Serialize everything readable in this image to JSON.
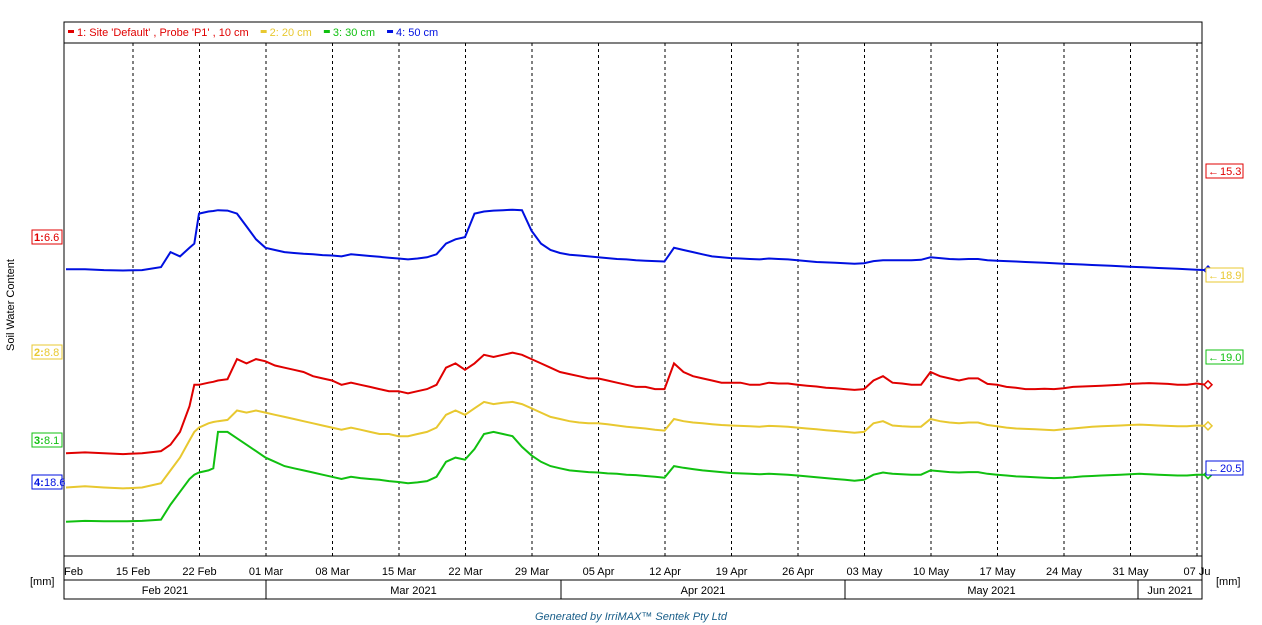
{
  "chart_data": {
    "type": "line",
    "ylabel": "Soil Water Content",
    "y_unit_left": "[mm]",
    "y_unit_right": "[mm]",
    "footer": "Generated by IrriMAX™ Sentek Pty Ltd",
    "x_ticks": [
      "Feb",
      "15 Feb",
      "22 Feb",
      "01 Mar",
      "08 Mar",
      "15 Mar",
      "22 Mar",
      "29 Mar",
      "05 Apr",
      "12 Apr",
      "19 Apr",
      "26 Apr",
      "03 May",
      "10 May",
      "17 May",
      "24 May",
      "31 May",
      "07 Ju"
    ],
    "months": [
      "Feb 2021",
      "Mar 2021",
      "Apr 2021",
      "May 2021",
      "Jun 2021"
    ],
    "series": [
      {
        "name": "1: Site 'Default' , Probe 'P1' , 10 cm",
        "color": "#e00000",
        "left_label_num": "1:",
        "left_label_val": "6.6",
        "right_label": "15.3",
        "x": [
          0,
          2,
          4,
          6,
          8,
          10,
          11,
          12,
          13,
          13.5,
          14,
          15,
          15.5,
          16,
          17,
          18,
          19,
          20,
          21,
          22,
          23,
          24,
          25,
          26,
          27,
          28,
          29,
          30,
          31,
          32,
          33,
          34,
          35,
          36,
          37,
          38,
          39,
          40,
          41,
          42,
          43,
          44,
          45,
          46,
          47,
          48,
          49,
          50,
          51,
          52,
          53,
          54,
          55,
          56,
          57,
          58,
          59,
          60,
          61,
          62,
          63,
          64,
          65,
          66,
          67,
          68,
          69,
          70,
          71,
          72,
          73,
          74,
          75,
          76,
          77,
          78,
          79,
          80,
          81,
          82,
          83,
          84,
          85,
          86,
          87,
          88,
          89,
          90,
          91,
          92,
          93,
          94,
          95,
          96,
          97,
          98,
          99,
          100,
          101,
          102,
          103,
          104,
          105,
          106,
          107,
          108,
          109,
          110,
          111,
          112,
          113,
          114,
          115,
          116,
          117,
          118,
          119,
          120
        ],
        "y": [
          112,
          112.2,
          112,
          111.8,
          112,
          112.5,
          114,
          117,
          123,
          128,
          128,
          128.5,
          128.7,
          129,
          129.3,
          134,
          133,
          134,
          133.5,
          132.5,
          132,
          131.5,
          131,
          130,
          129.5,
          129,
          128,
          128.5,
          128,
          127.5,
          127,
          126.5,
          126.5,
          126,
          126.5,
          127,
          128,
          132,
          133,
          131.5,
          133,
          135,
          134.5,
          135,
          135.5,
          135,
          134,
          133,
          132,
          131,
          130.5,
          130,
          129.5,
          129.5,
          129,
          128.5,
          128,
          127.5,
          127.5,
          127,
          127,
          133,
          131,
          130,
          129.5,
          129,
          128.5,
          128.5,
          128.5,
          128,
          128,
          128.5,
          128.3,
          128.3,
          128,
          127.8,
          127.6,
          127.3,
          127.2,
          127,
          126.8,
          127,
          129,
          130,
          128.5,
          128.3,
          128,
          128,
          131,
          130,
          129.5,
          129,
          129.5,
          129.5,
          128.2,
          128,
          127.5,
          127.3,
          127,
          127,
          127.1,
          127,
          127.2,
          127.5,
          127.6,
          127.7,
          127.8,
          127.9,
          128,
          128.2,
          128.3,
          128.4,
          128.3,
          128.2,
          128,
          128,
          128.3,
          128
        ]
      },
      {
        "name": "2: 20 cm",
        "color": "#e8c830",
        "left_label_num": "2:",
        "left_label_val": "8.8",
        "right_label": "18.9",
        "x": [
          0,
          2,
          4,
          6,
          8,
          10,
          11,
          12,
          13,
          13.5,
          14,
          15,
          15.5,
          16,
          17,
          18,
          19,
          20,
          21,
          22,
          23,
          24,
          25,
          26,
          27,
          28,
          29,
          30,
          31,
          32,
          33,
          34,
          35,
          36,
          37,
          38,
          39,
          40,
          41,
          42,
          43,
          44,
          45,
          46,
          47,
          48,
          49,
          50,
          51,
          52,
          53,
          54,
          55,
          56,
          57,
          58,
          59,
          60,
          61,
          62,
          63,
          64,
          65,
          66,
          67,
          68,
          69,
          70,
          71,
          72,
          73,
          74,
          75,
          76,
          77,
          78,
          79,
          80,
          81,
          82,
          83,
          84,
          85,
          86,
          87,
          88,
          89,
          90,
          91,
          92,
          93,
          94,
          95,
          96,
          97,
          98,
          99,
          100,
          101,
          102,
          103,
          104,
          105,
          106,
          107,
          108,
          109,
          110,
          111,
          112,
          113,
          114,
          115,
          116,
          117,
          118,
          119,
          120
        ],
        "y": [
          104,
          104.3,
          104,
          103.8,
          104,
          105,
          108,
          111,
          115,
          117,
          118,
          119,
          119.3,
          119.5,
          119.8,
          122,
          121.5,
          122,
          121.5,
          121,
          120.5,
          120,
          119.5,
          119,
          118.5,
          118,
          117.5,
          118,
          117.5,
          117,
          116.5,
          116.5,
          116,
          116,
          116.5,
          117,
          118,
          121,
          122,
          121,
          122.5,
          124,
          123.5,
          123.8,
          124,
          123.5,
          122.5,
          121.5,
          120.5,
          120,
          119.5,
          119.2,
          119,
          119,
          118.8,
          118.5,
          118.2,
          118,
          117.8,
          117.5,
          117.3,
          120,
          119.5,
          119.2,
          119,
          118.8,
          118.6,
          118.5,
          118.4,
          118.3,
          118.2,
          118.4,
          118.3,
          118.2,
          118,
          117.8,
          117.6,
          117.4,
          117.2,
          117,
          116.8,
          117,
          119,
          119.5,
          118.5,
          118.3,
          118.2,
          118.2,
          120,
          119.5,
          119.2,
          119,
          119.2,
          119.2,
          118.6,
          118.3,
          118,
          117.8,
          117.7,
          117.6,
          117.5,
          117.4,
          117.6,
          117.8,
          118,
          118.2,
          118.3,
          118.4,
          118.5,
          118.6,
          118.7,
          118.6,
          118.5,
          118.4,
          118.3,
          118.3,
          118.5,
          118.4
        ]
      },
      {
        "name": "3: 30 cm",
        "color": "#10c010",
        "left_label_num": "3:",
        "left_label_val": "8.1",
        "right_label": "19.0",
        "x": [
          0,
          2,
          4,
          6,
          8,
          10,
          11,
          12,
          13,
          13.5,
          14,
          15,
          15.5,
          16,
          17,
          18,
          19,
          20,
          21,
          22,
          23,
          24,
          25,
          26,
          27,
          28,
          29,
          30,
          31,
          32,
          33,
          34,
          35,
          36,
          37,
          38,
          39,
          40,
          41,
          42,
          43,
          44,
          45,
          46,
          47,
          48,
          49,
          50,
          51,
          52,
          53,
          54,
          55,
          56,
          57,
          58,
          59,
          60,
          61,
          62,
          63,
          64,
          65,
          66,
          67,
          68,
          69,
          70,
          71,
          72,
          73,
          74,
          75,
          76,
          77,
          78,
          79,
          80,
          81,
          82,
          83,
          84,
          85,
          86,
          87,
          88,
          89,
          90,
          91,
          92,
          93,
          94,
          95,
          96,
          97,
          98,
          99,
          100,
          101,
          102,
          103,
          104,
          105,
          106,
          107,
          108,
          109,
          110,
          111,
          112,
          113,
          114,
          115,
          116,
          117,
          118,
          119,
          120
        ],
        "y": [
          96,
          96.2,
          96.1,
          96.1,
          96.2,
          96.5,
          100,
          103,
          106,
          107,
          107.5,
          108,
          108.5,
          117,
          117,
          115.5,
          114,
          112.5,
          111,
          110,
          109,
          108.5,
          108,
          107.5,
          107,
          106.5,
          106,
          106.5,
          106.2,
          106,
          105.8,
          105.5,
          105.3,
          105,
          105.2,
          105.5,
          106.5,
          110,
          111,
          110.5,
          113,
          116.5,
          117,
          116.5,
          116,
          113.5,
          111.5,
          110,
          109,
          108.5,
          108,
          107.8,
          107.6,
          107.5,
          107.3,
          107.2,
          107,
          106.9,
          106.7,
          106.5,
          106.3,
          109,
          108.6,
          108.3,
          108,
          107.8,
          107.6,
          107.4,
          107.3,
          107.2,
          107.1,
          107.2,
          107.1,
          107,
          106.8,
          106.6,
          106.4,
          106.2,
          106,
          105.8,
          105.6,
          105.8,
          107,
          107.5,
          107.2,
          107.1,
          107,
          107,
          108,
          107.8,
          107.6,
          107.5,
          107.6,
          107.6,
          107.2,
          107,
          106.8,
          106.6,
          106.5,
          106.4,
          106.3,
          106.2,
          106.3,
          106.4,
          106.6,
          106.7,
          106.8,
          106.9,
          107,
          107.1,
          107.2,
          107.1,
          107,
          106.9,
          106.8,
          106.8,
          107,
          107
        ]
      },
      {
        "name": "4: 50 cm",
        "color": "#0010e0",
        "left_label_num": "4:",
        "left_label_val": "18.6",
        "right_label": "20.5",
        "x": [
          0,
          2,
          4,
          6,
          8,
          10,
          11,
          12,
          13,
          13.5,
          14,
          15,
          15.5,
          16,
          17,
          18,
          19,
          20,
          21,
          22,
          23,
          24,
          25,
          26,
          27,
          28,
          29,
          30,
          31,
          32,
          33,
          34,
          35,
          36,
          37,
          38,
          39,
          40,
          41,
          42,
          43,
          44,
          45,
          46,
          47,
          48,
          49,
          50,
          51,
          52,
          53,
          54,
          55,
          56,
          57,
          58,
          59,
          60,
          61,
          62,
          63,
          64,
          65,
          66,
          67,
          68,
          69,
          70,
          71,
          72,
          73,
          74,
          75,
          76,
          77,
          78,
          79,
          80,
          81,
          82,
          83,
          84,
          85,
          86,
          87,
          88,
          89,
          90,
          91,
          92,
          93,
          94,
          95,
          96,
          97,
          98,
          99,
          100,
          101,
          102,
          103,
          104,
          105,
          106,
          107,
          108,
          109,
          110,
          111,
          112,
          113,
          114,
          115,
          116,
          117,
          118,
          119,
          120
        ],
        "y": [
          155,
          155,
          154.8,
          154.7,
          154.8,
          155.5,
          159,
          158,
          160,
          161,
          168,
          168.5,
          168.6,
          168.8,
          168.7,
          168,
          165,
          162,
          160,
          159.5,
          159,
          158.8,
          158.6,
          158.5,
          158.3,
          158.2,
          158,
          158.5,
          158.3,
          158.1,
          157.9,
          157.7,
          157.5,
          157.3,
          157.5,
          157.8,
          158.5,
          161,
          162,
          162.5,
          168,
          168.5,
          168.7,
          168.8,
          168.9,
          168.8,
          164,
          161,
          159.5,
          158.8,
          158.4,
          158.2,
          158,
          157.8,
          157.6,
          157.4,
          157.3,
          157.1,
          157,
          156.9,
          156.8,
          160,
          159.5,
          159,
          158.5,
          158,
          157.8,
          157.6,
          157.5,
          157.4,
          157.3,
          157.5,
          157.4,
          157.3,
          157.1,
          156.9,
          156.7,
          156.6,
          156.5,
          156.4,
          156.3,
          156.4,
          156.9,
          157.1,
          157.1,
          157.1,
          157.1,
          157.2,
          157.8,
          157.6,
          157.4,
          157.3,
          157.4,
          157.4,
          157.1,
          157,
          156.9,
          156.8,
          156.7,
          156.6,
          156.5,
          156.4,
          156.3,
          156.2,
          156.1,
          156,
          155.9,
          155.8,
          155.7,
          155.6,
          155.5,
          155.4,
          155.3,
          155.2,
          155.1,
          155,
          154.9,
          154.8
        ]
      }
    ]
  }
}
